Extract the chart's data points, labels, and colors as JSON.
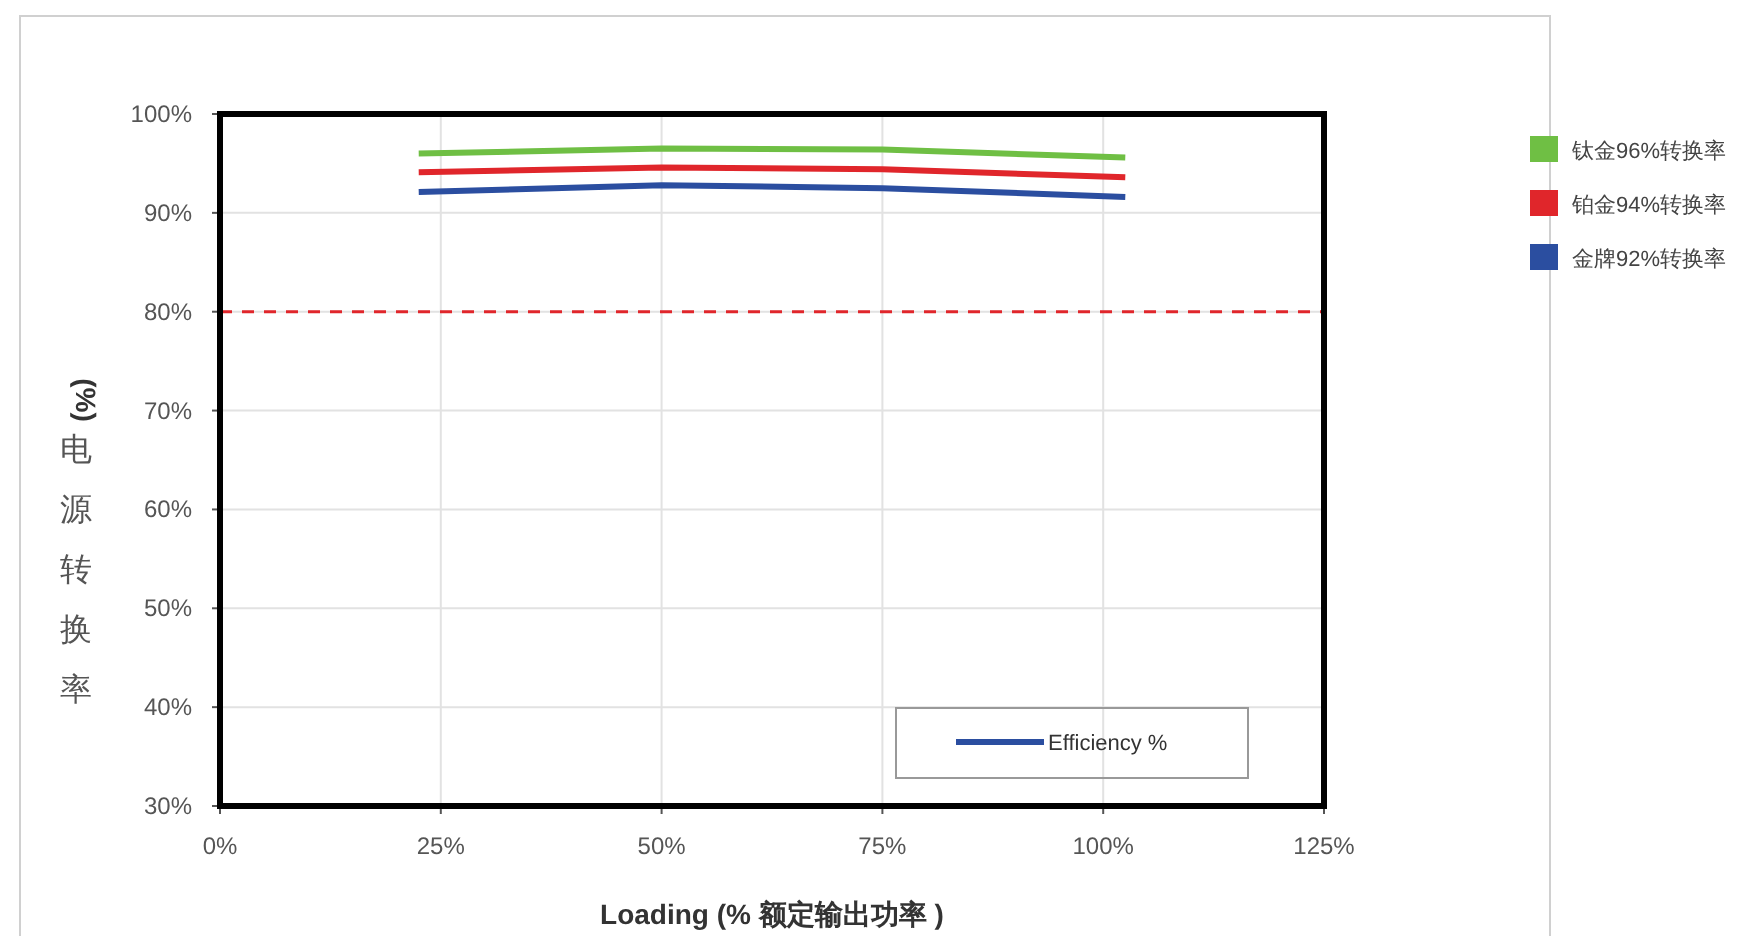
{
  "chart_data": {
    "type": "line",
    "xlabel": "Loading (% 额定输出功率 )",
    "ylabel": "(%) 电源转换率",
    "xlim": [
      0,
      125
    ],
    "xticks": [
      {
        "value": 0,
        "label": "0%"
      },
      {
        "value": 25,
        "label": "25%"
      },
      {
        "value": 50,
        "label": "50%"
      },
      {
        "value": 75,
        "label": "75%"
      },
      {
        "value": 100,
        "label": "100%"
      },
      {
        "value": 125,
        "label": "125%"
      }
    ],
    "ylim": [
      30,
      100
    ],
    "yticks": [
      {
        "value": 30,
        "label": "30%"
      },
      {
        "value": 40,
        "label": "40%"
      },
      {
        "value": 50,
        "label": "50%"
      },
      {
        "value": 60,
        "label": "60%"
      },
      {
        "value": 70,
        "label": "70%"
      },
      {
        "value": 80,
        "label": "80%"
      },
      {
        "value": 90,
        "label": "90%"
      },
      {
        "value": 100,
        "label": "100%"
      }
    ],
    "x": [
      22.5,
      50,
      75,
      102.5
    ],
    "series": [
      {
        "name": "钛金96%转换率",
        "color": "#6fbf44",
        "values": [
          96.0,
          96.5,
          96.4,
          95.6
        ]
      },
      {
        "name": "铂金94%转换率",
        "color": "#e0262b",
        "values": [
          94.1,
          94.6,
          94.4,
          93.6
        ]
      },
      {
        "name": "金牌92%转换率",
        "color": "#2b4ea0",
        "values": [
          92.1,
          92.8,
          92.5,
          91.6
        ]
      }
    ],
    "ref_lines": [
      {
        "axis": "y",
        "value": 80,
        "color": "#e0262b",
        "line_style": "dashed"
      }
    ],
    "annotations": [
      "Efficiency %"
    ],
    "grid": true,
    "legend": "right",
    "marker": "none",
    "line_style": "solid"
  }
}
